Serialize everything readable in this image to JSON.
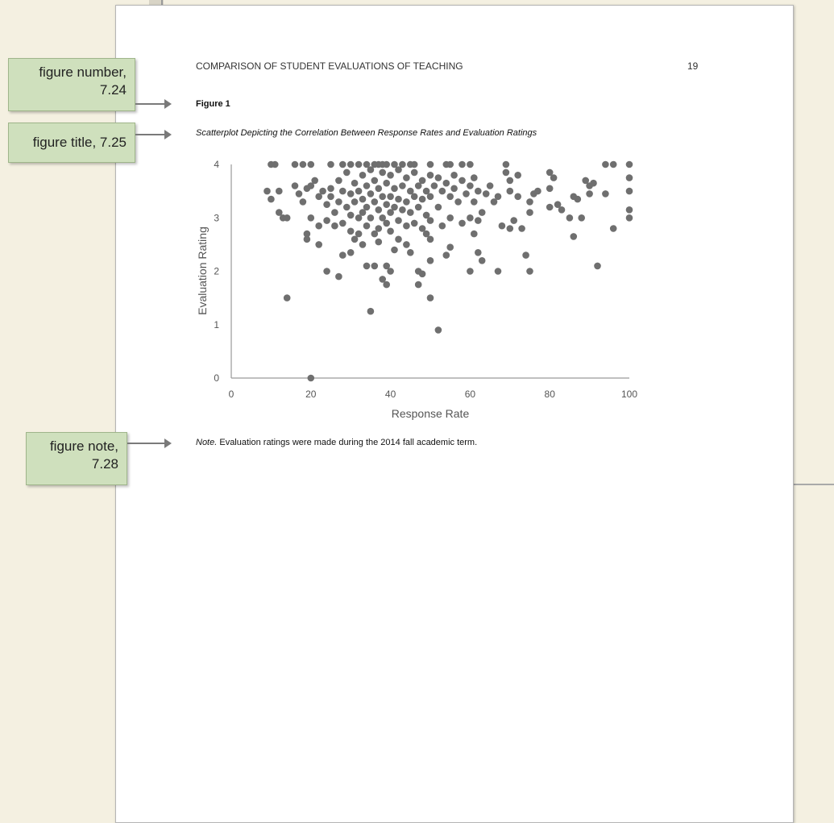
{
  "page": {
    "running_head": "COMPARISON OF STUDENT EVALUATIONS OF TEACHING",
    "page_number": "19",
    "figure_number": "Figure 1",
    "figure_title": "Scatterplot Depicting the Correlation Between Response Rates and Evaluation Ratings",
    "note_label": "Note.",
    "note_text": " Evaluation ratings were made during the 2014 fall academic term."
  },
  "callouts": {
    "figure_number": {
      "line1": "figure number,",
      "line2": "7.24"
    },
    "figure_title": {
      "line1": "figure title, 7.25"
    },
    "figure_note": {
      "line1": "figure note,",
      "line2": "7.28"
    }
  },
  "colors": {
    "callout_bg": "#cfe0bd",
    "points": "#6f6f6f",
    "axis": "#9a9a9a"
  },
  "chart_data": {
    "type": "scatter",
    "xlabel": "Response Rate",
    "ylabel": "Evaluation Rating",
    "xlim": [
      0,
      100
    ],
    "ylim": [
      0,
      4
    ],
    "xticks": [
      "0",
      "20",
      "40",
      "60",
      "80",
      "100"
    ],
    "yticks": [
      "0",
      "1",
      "2",
      "3",
      "4"
    ],
    "grid": false,
    "points": [
      [
        10,
        4
      ],
      [
        11,
        4
      ],
      [
        16,
        4
      ],
      [
        18,
        4
      ],
      [
        20,
        4
      ],
      [
        25,
        4
      ],
      [
        28,
        4
      ],
      [
        30,
        4
      ],
      [
        32,
        4
      ],
      [
        34,
        4
      ],
      [
        36,
        4
      ],
      [
        37,
        4
      ],
      [
        38,
        4
      ],
      [
        39,
        4
      ],
      [
        41,
        4
      ],
      [
        43,
        4
      ],
      [
        45,
        4
      ],
      [
        46,
        4
      ],
      [
        50,
        4
      ],
      [
        54,
        4
      ],
      [
        55,
        4
      ],
      [
        58,
        4
      ],
      [
        60,
        4
      ],
      [
        69,
        4
      ],
      [
        94,
        4
      ],
      [
        96,
        4
      ],
      [
        100,
        4
      ],
      [
        9,
        3.5
      ],
      [
        10,
        3.35
      ],
      [
        12,
        3.5
      ],
      [
        12,
        3.1
      ],
      [
        13,
        3
      ],
      [
        14,
        3
      ],
      [
        16,
        3.6
      ],
      [
        17,
        3.45
      ],
      [
        18,
        3.3
      ],
      [
        19,
        3.55
      ],
      [
        20,
        3.6
      ],
      [
        20,
        3.0
      ],
      [
        21,
        3.7
      ],
      [
        22,
        3.4
      ],
      [
        22,
        2.85
      ],
      [
        23,
        3.5
      ],
      [
        24,
        3.25
      ],
      [
        24,
        2.95
      ],
      [
        25,
        3.55
      ],
      [
        25,
        3.4
      ],
      [
        26,
        3.1
      ],
      [
        26,
        2.85
      ],
      [
        27,
        3.7
      ],
      [
        27,
        3.3
      ],
      [
        28,
        3.5
      ],
      [
        28,
        2.9
      ],
      [
        29,
        3.85
      ],
      [
        29,
        3.2
      ],
      [
        30,
        3.45
      ],
      [
        30,
        3.05
      ],
      [
        30,
        2.75
      ],
      [
        31,
        3.65
      ],
      [
        31,
        3.3
      ],
      [
        32,
        3.5
      ],
      [
        32,
        3.0
      ],
      [
        32,
        2.7
      ],
      [
        33,
        3.8
      ],
      [
        33,
        3.35
      ],
      [
        33,
        3.1
      ],
      [
        34,
        3.6
      ],
      [
        34,
        3.2
      ],
      [
        34,
        2.85
      ],
      [
        35,
        3.9
      ],
      [
        35,
        3.45
      ],
      [
        35,
        3.0
      ],
      [
        36,
        3.7
      ],
      [
        36,
        3.3
      ],
      [
        36,
        2.7
      ],
      [
        37,
        3.55
      ],
      [
        37,
        3.15
      ],
      [
        37,
        2.8
      ],
      [
        38,
        3.85
      ],
      [
        38,
        3.4
      ],
      [
        38,
        3.0
      ],
      [
        39,
        3.65
      ],
      [
        39,
        3.25
      ],
      [
        39,
        2.9
      ],
      [
        40,
        3.8
      ],
      [
        40,
        3.4
      ],
      [
        40,
        3.1
      ],
      [
        40,
        2.75
      ],
      [
        41,
        3.55
      ],
      [
        41,
        3.2
      ],
      [
        42,
        3.9
      ],
      [
        42,
        3.35
      ],
      [
        42,
        2.95
      ],
      [
        43,
        3.6
      ],
      [
        43,
        3.15
      ],
      [
        44,
        3.75
      ],
      [
        44,
        3.3
      ],
      [
        44,
        2.85
      ],
      [
        45,
        3.5
      ],
      [
        45,
        3.1
      ],
      [
        46,
        3.85
      ],
      [
        46,
        3.4
      ],
      [
        46,
        2.9
      ],
      [
        47,
        3.6
      ],
      [
        47,
        3.2
      ],
      [
        48,
        3.7
      ],
      [
        48,
        3.35
      ],
      [
        48,
        2.8
      ],
      [
        49,
        3.5
      ],
      [
        49,
        3.05
      ],
      [
        50,
        3.8
      ],
      [
        50,
        3.4
      ],
      [
        50,
        2.95
      ],
      [
        51,
        3.6
      ],
      [
        52,
        3.75
      ],
      [
        52,
        3.2
      ],
      [
        53,
        3.5
      ],
      [
        53,
        2.85
      ],
      [
        54,
        3.65
      ],
      [
        55,
        3.4
      ],
      [
        55,
        3.0
      ],
      [
        56,
        3.8
      ],
      [
        56,
        3.55
      ],
      [
        57,
        3.3
      ],
      [
        58,
        3.7
      ],
      [
        58,
        2.9
      ],
      [
        59,
        3.45
      ],
      [
        60,
        3.6
      ],
      [
        60,
        3.0
      ],
      [
        61,
        3.75
      ],
      [
        61,
        3.3
      ],
      [
        62,
        3.5
      ],
      [
        62,
        2.95
      ],
      [
        63,
        3.1
      ],
      [
        64,
        3.45
      ],
      [
        65,
        3.6
      ],
      [
        66,
        3.3
      ],
      [
        67,
        3.4
      ],
      [
        68,
        2.85
      ],
      [
        69,
        3.85
      ],
      [
        70,
        3.7
      ],
      [
        70,
        3.5
      ],
      [
        71,
        2.95
      ],
      [
        72,
        3.4
      ],
      [
        72,
        3.8
      ],
      [
        73,
        2.8
      ],
      [
        75,
        3.1
      ],
      [
        75,
        3.3
      ],
      [
        76,
        3.45
      ],
      [
        77,
        3.5
      ],
      [
        80,
        3.85
      ],
      [
        80,
        3.55
      ],
      [
        80,
        3.2
      ],
      [
        81,
        3.75
      ],
      [
        82,
        3.25
      ],
      [
        83,
        3.15
      ],
      [
        85,
        3.0
      ],
      [
        86,
        3.4
      ],
      [
        87,
        3.35
      ],
      [
        88,
        3.0
      ],
      [
        89,
        3.7
      ],
      [
        90,
        3.45
      ],
      [
        90,
        3.6
      ],
      [
        91,
        3.65
      ],
      [
        94,
        3.45
      ],
      [
        96,
        2.8
      ],
      [
        100,
        3.75
      ],
      [
        100,
        3.5
      ],
      [
        100,
        3.15
      ],
      [
        100,
        3.0
      ],
      [
        19,
        2.7
      ],
      [
        19,
        2.6
      ],
      [
        22,
        2.5
      ],
      [
        24,
        2.0
      ],
      [
        27,
        1.9
      ],
      [
        28,
        2.3
      ],
      [
        30,
        2.35
      ],
      [
        31,
        2.6
      ],
      [
        33,
        2.5
      ],
      [
        34,
        2.1
      ],
      [
        35,
        1.25
      ],
      [
        36,
        2.1
      ],
      [
        37,
        2.55
      ],
      [
        38,
        1.85
      ],
      [
        39,
        1.75
      ],
      [
        39,
        2.1
      ],
      [
        40,
        2.0
      ],
      [
        41,
        2.4
      ],
      [
        42,
        2.6
      ],
      [
        44,
        2.5
      ],
      [
        45,
        2.35
      ],
      [
        47,
        2.0
      ],
      [
        47,
        1.75
      ],
      [
        48,
        1.95
      ],
      [
        49,
        2.7
      ],
      [
        50,
        2.6
      ],
      [
        50,
        2.2
      ],
      [
        50,
        1.5
      ],
      [
        52,
        0.9
      ],
      [
        54,
        2.3
      ],
      [
        55,
        2.45
      ],
      [
        60,
        2.0
      ],
      [
        61,
        2.7
      ],
      [
        62,
        2.35
      ],
      [
        63,
        2.2
      ],
      [
        67,
        2.0
      ],
      [
        70,
        2.8
      ],
      [
        74,
        2.3
      ],
      [
        75,
        2.0
      ],
      [
        86,
        2.65
      ],
      [
        92,
        2.1
      ],
      [
        14,
        1.5
      ],
      [
        20,
        0
      ]
    ]
  }
}
